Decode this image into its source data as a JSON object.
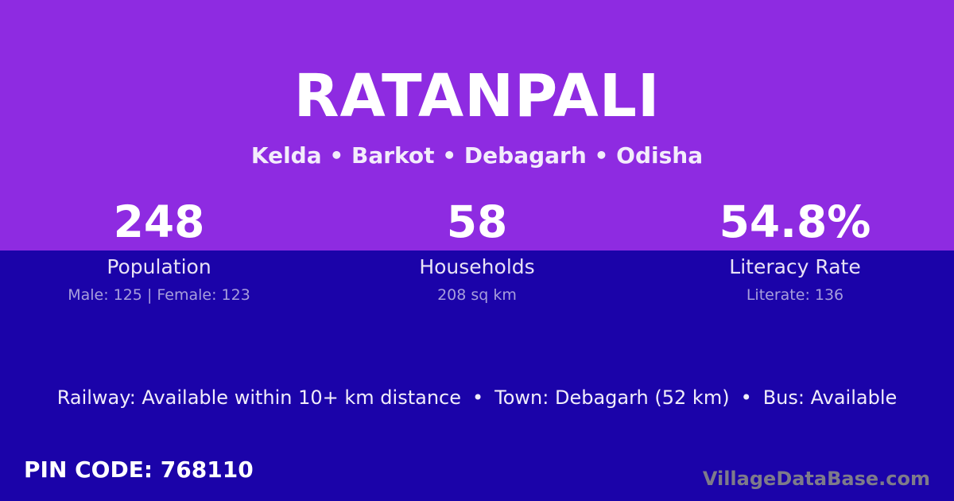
{
  "header": {
    "title": "RATANPALI",
    "breadcrumb": "Kelda • Barkot • Debagarh • Odisha"
  },
  "stats": [
    {
      "value": "248",
      "label": "Population",
      "detail": "Male: 125 | Female: 123"
    },
    {
      "value": "58",
      "label": "Households",
      "detail": "208 sq km"
    },
    {
      "value": "54.8%",
      "label": "Literacy Rate",
      "detail": "Literate: 136"
    }
  ],
  "transport": {
    "railway": "Railway: Available within 10+ km distance",
    "separator": "•",
    "town": "Town: Debagarh (52 km)",
    "bus": "Bus: Available"
  },
  "footer": {
    "pin_code": "PIN CODE: 768110",
    "watermark": "VillageDataBase.com"
  },
  "colors": {
    "top_background": "#8e2be1",
    "bottom_background": "#1b03a9",
    "detail_text": "#a79edc",
    "watermark_text": "#7e7b8a"
  }
}
